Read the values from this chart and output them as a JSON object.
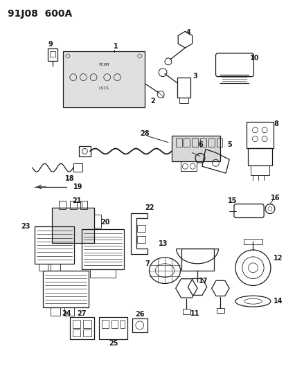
{
  "title": "91J08  600A",
  "bg_color": "#ffffff",
  "fg_color": "#1a1a1a",
  "title_fontsize": 10,
  "fig_width": 4.14,
  "fig_height": 5.33,
  "dpi": 100
}
